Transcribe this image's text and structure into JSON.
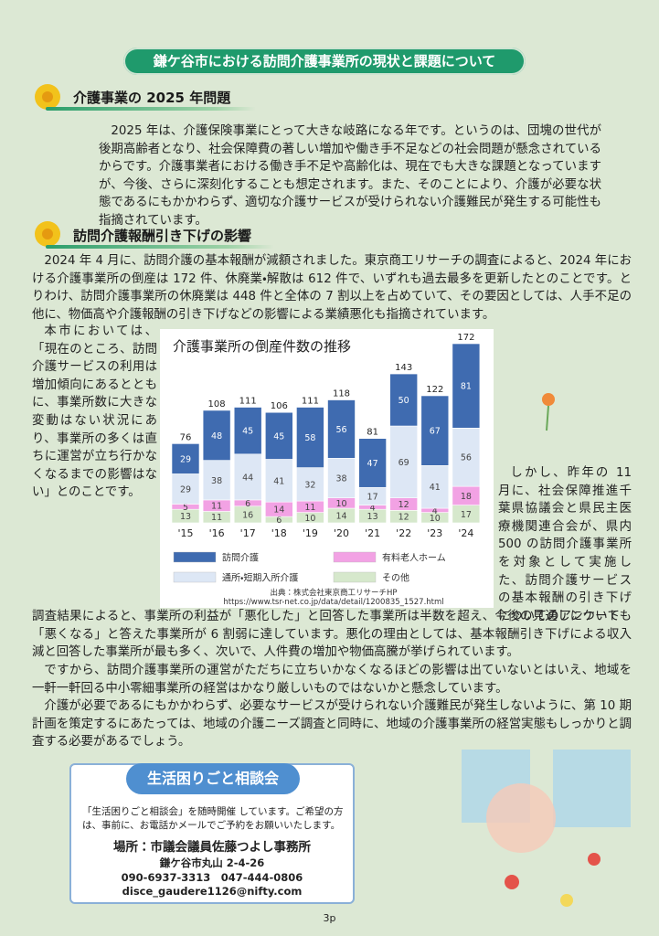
{
  "header": {
    "title": "鎌ケ谷市における訪問介護事業所の現状と課題について"
  },
  "sections": [
    {
      "heading": "介護事業の 2025 年問題",
      "paragraphs": [
        "2025 年は、介護保険事業にとって大きな岐路になる年です。というのは、団塊の世代が後期高齢者となり、社会保障費の著しい増加や働き手不足などの社会問題が懸念されているからです。介護事業者における働き手不足や高齢化は、現在でも大きな課題となっていますが、今後、さらに深刻化することも想定されます。また、そのことにより、介護が必要な状態であるにもかかわらず、適切な介護サービスが受けられない介護難民が発生する可能性も指摘されています。"
      ]
    },
    {
      "heading": "訪問介護報酬引き下げの影響",
      "paragraphs": [
        "2024 年 4 月に、訪問介護の基本報酬が減額されました。東京商工リサーチの調査によると、2024 年における介護事業所の倒産は 172 件、休廃業・解散は 612 件で、いずれも過去最多を更新したとのことです。とりわけ、訪問介護事業所の休廃業は 448 件と全体の 7 割以上を占めていて、その要因としては、人手不足の他に、物価高や介護報酬の引き下げなどの影響による業績悪化も指摘されています。",
        "本市においては、「現在のところ、訪問介護サービスの利用は増加傾向にあるとともに、事業所数に大きな変動はない状況にあり、事業所の多くは直ちに運営が立ち行かなくなるまでの影響はない」とのことです。",
        "しかし、昨年の 11 月に、社会保障推進千葉県協議会と県民主医療機関連合会が、県内 500 の訪問介護事業所を対象として実施した、訪問介護サービスの基本報酬の引き下げについてのアンケート",
        "調査結果によると、事業所の利益が「悪化した」と回答した事業所は半数を超え、今後の見通しについても「悪くなる」と答えた事業所が 6 割弱に達しています。悪化の理由としては、基本報酬引き下げによる収入減と回答した事業所が最も多く、次いで、人件費の増加や物価高騰が挙げられています。",
        "ですから、訪問介護事業所の運営がただちに立ちいかなくなるほどの影響は出ていないとはいえ、地域を一軒一軒回る中小零細事業所の経営はかなり厳しいものではないかと懸念しています。",
        "介護が必要であるにもかかわらず、必要なサービスが受けられない介護難民が発生しないように、第 10 期計画を策定するにあたっては、地域の介護ニーズ調査と同時に、地域の介護事業所の経営実態もしっかりと調査する必要があるでしょう。"
      ]
    }
  ],
  "chart_data": {
    "type": "stacked_bar",
    "title": "介護事業所の倒産件数の推移",
    "categories": [
      "'15",
      "'16",
      "'17",
      "'18",
      "'19",
      "'20",
      "'21",
      "'22",
      "'23",
      "'24"
    ],
    "series": [
      {
        "name": "その他",
        "color": "#d6e8cc",
        "values": [
          13,
          11,
          16,
          6,
          10,
          14,
          13,
          12,
          10,
          17
        ]
      },
      {
        "name": "有料老人ホーム",
        "color": "#f2a2e4",
        "values": [
          5,
          11,
          6,
          14,
          11,
          10,
          4,
          12,
          4,
          18
        ]
      },
      {
        "name": "通所・短期入所介護",
        "color": "#dde7f5",
        "values": [
          29,
          38,
          44,
          41,
          32,
          38,
          17,
          69,
          41,
          56
        ]
      },
      {
        "name": "訪問介護",
        "color": "#3f6bb0",
        "values": [
          29,
          48,
          45,
          45,
          58,
          56,
          47,
          50,
          67,
          81
        ]
      }
    ],
    "totals": [
      76,
      108,
      111,
      106,
      111,
      118,
      81,
      143,
      122,
      172
    ],
    "source": [
      "出典：株式会社東京商工リサーチHP",
      "https://www.tsr-net.co.jp/data/detail/1200835_1527.html"
    ]
  },
  "consult": {
    "title": "生活困りごと相談会",
    "text": "「生活困りごと相談会」を随時開催 しています。ご希望の方は、事前に、お電話かメールでご予約をお願いいたします。",
    "place": "場所：市議会議員佐藤つよし事務所",
    "address": "鎌ケ谷市丸山 2-4-26",
    "phone": "090-6937-3313　047-444-0806",
    "email": "disce_gaudere1126@nifty.com"
  },
  "page_number": "3p"
}
